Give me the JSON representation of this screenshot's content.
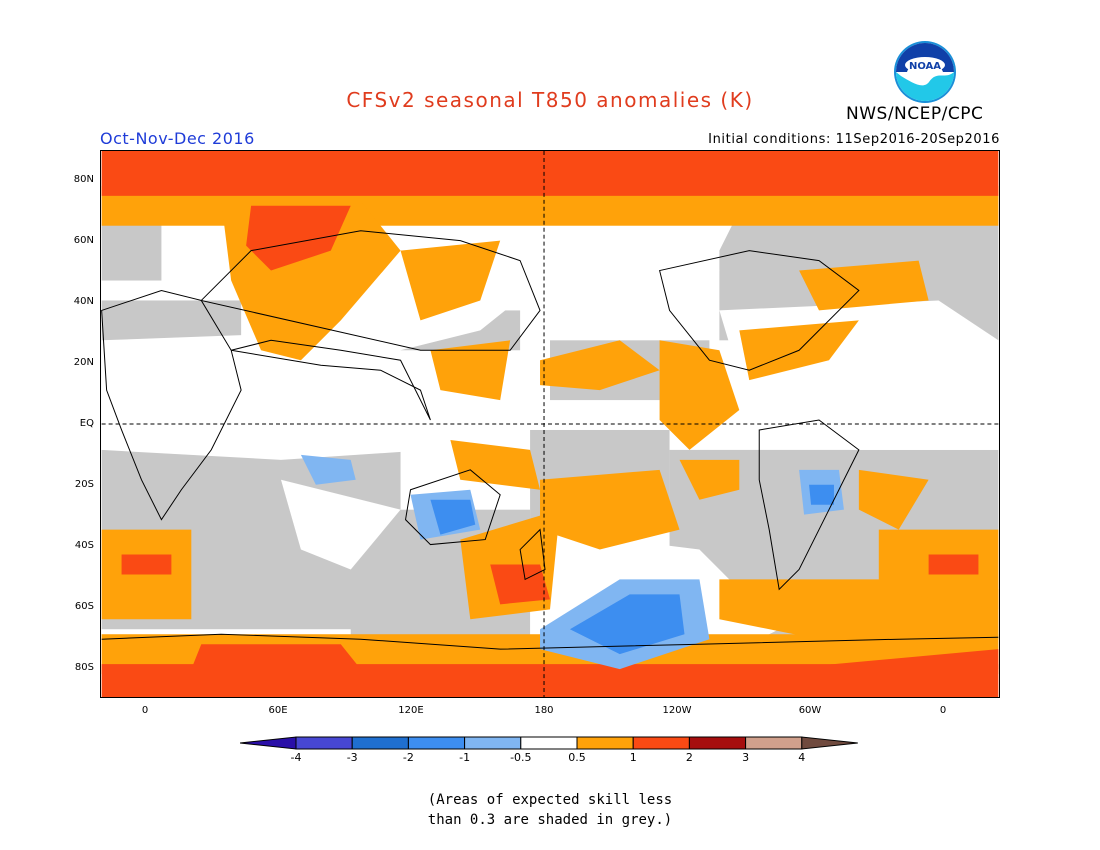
{
  "header": {
    "title": "CFSv2 seasonal T850 anomalies (K)",
    "agency": "NWS/NCEP/CPC",
    "season": "Oct-Nov-Dec 2016",
    "initial_conditions": "Initial conditions: 11Sep2016-20Sep2016"
  },
  "logo": {
    "text": "NOAA",
    "icon": "noaa-logo-icon"
  },
  "axes": {
    "lat_labels": [
      "80N",
      "60N",
      "40N",
      "20N",
      "EQ",
      "20S",
      "40S",
      "60S",
      "80S"
    ],
    "lon_labels": [
      "0",
      "60E",
      "120E",
      "180",
      "120W",
      "60W",
      "0"
    ]
  },
  "colorbar": {
    "labels": [
      "-4",
      "-3",
      "-2",
      "-1",
      "-0.5",
      "0.5",
      "1",
      "2",
      "3",
      "4"
    ],
    "colors": [
      "#2a0fa8",
      "#4747d3",
      "#1f6fd0",
      "#3d8ef0",
      "#80b6f2",
      "#ffffff",
      "#ffa20a",
      "#fa4a14",
      "#a60e0e",
      "#d1a08c",
      "#704a3e"
    ]
  },
  "note": {
    "line1": "(Areas of expected skill less",
    "line2": "than 0.3 are shaded in grey.)"
  },
  "colors": {
    "grey_low_skill": "#c8c8c8",
    "orange": "#ffa20a",
    "red": "#fa4a14",
    "light_blue": "#80b6f2",
    "blue": "#3d8ef0",
    "title_red": "#e03c1e",
    "season_blue": "#1f3cd8"
  }
}
